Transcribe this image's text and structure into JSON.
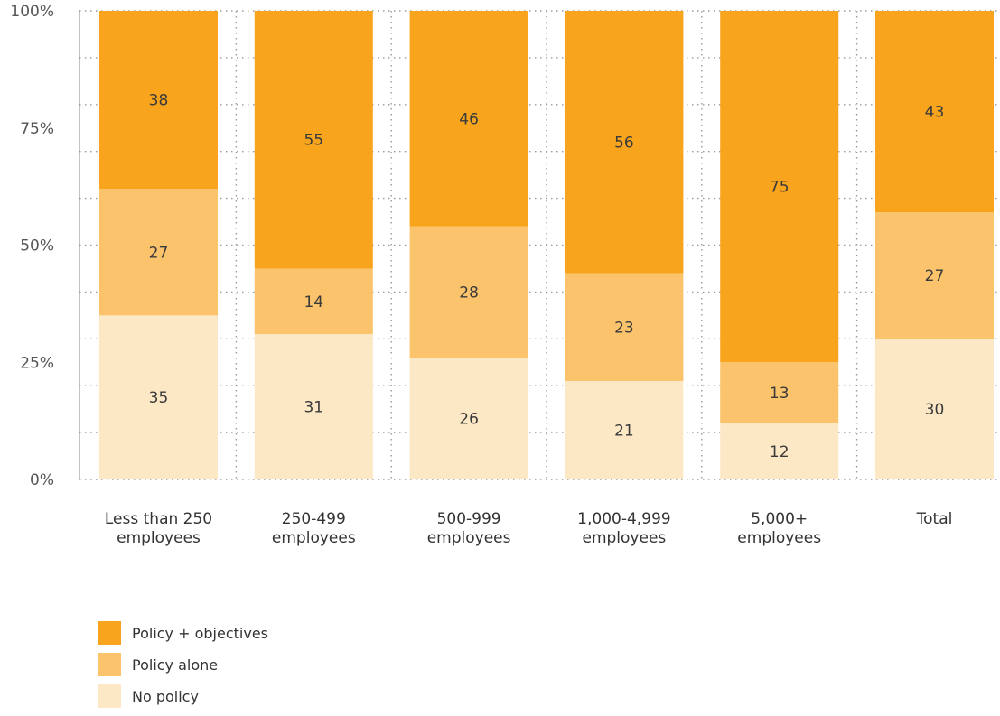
{
  "chart_data": {
    "type": "bar",
    "stacked": true,
    "categories": [
      [
        "Less than 250",
        "employees"
      ],
      [
        "250-499",
        "employees"
      ],
      [
        "500-999",
        "employees"
      ],
      [
        "1,000-4,999",
        "employees"
      ],
      [
        "5,000+",
        "employees"
      ],
      [
        "Total"
      ]
    ],
    "series": [
      {
        "name": "No policy",
        "color": "#fde8c6",
        "values": [
          35,
          31,
          26,
          21,
          12,
          30
        ]
      },
      {
        "name": "Policy alone",
        "color": "#fbc46c",
        "values": [
          27,
          14,
          28,
          23,
          13,
          27
        ]
      },
      {
        "name": "Policy + objectives",
        "color": "#f8a51d",
        "values": [
          38,
          55,
          46,
          56,
          75,
          43
        ]
      }
    ],
    "y_ticks": [
      "0%",
      "25%",
      "50%",
      "75%",
      "100%"
    ],
    "ylim": [
      0,
      100
    ],
    "grid": "dotted",
    "legend_position": "bottom-left"
  },
  "legend": [
    {
      "label": "Policy + objectives",
      "color": "#f8a51d"
    },
    {
      "label": "Policy alone",
      "color": "#fbc46c"
    },
    {
      "label": "No policy",
      "color": "#fde8c6"
    }
  ]
}
